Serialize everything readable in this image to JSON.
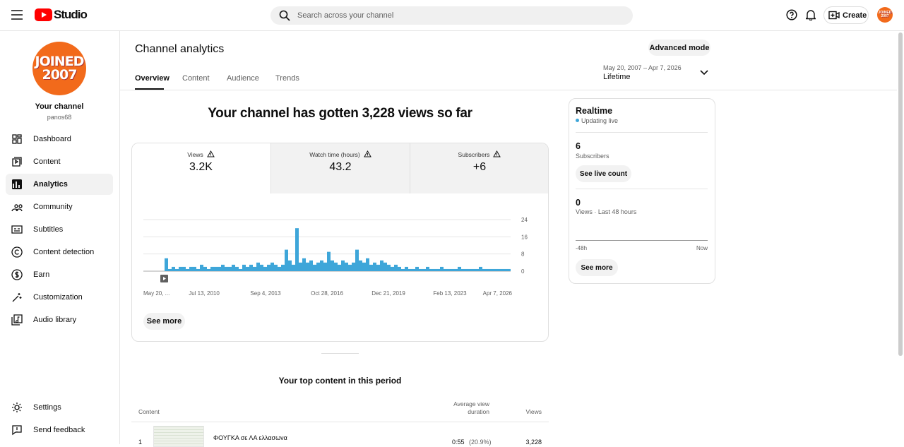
{
  "header": {
    "logo": "Studio",
    "search_placeholder": "Search across your channel",
    "create": "Create",
    "avatar": [
      "JOINED",
      "2007"
    ]
  },
  "sidebar": {
    "avatar": [
      "JOINED",
      "2007"
    ],
    "channel_name": "Your channel",
    "handle": "panos68",
    "nav": [
      "Dashboard",
      "Content",
      "Analytics",
      "Community",
      "Subtitles",
      "Content detection",
      "Earn",
      "Customization",
      "Audio library"
    ],
    "bottom": [
      "Settings",
      "Send feedback"
    ]
  },
  "page": {
    "title": "Channel analytics",
    "tabs": [
      "Overview",
      "Content",
      "Audience",
      "Trends"
    ],
    "advanced": "Advanced mode",
    "date_range": "May 20, 2007 – Apr 7, 2026",
    "period": "Lifetime"
  },
  "headline": "Your channel has gotten 3,228 views so far",
  "metrics": [
    {
      "label": "Views",
      "value": "3.2K"
    },
    {
      "label": "Watch time (hours)",
      "value": "43.2"
    },
    {
      "label": "Subscribers",
      "value": "+6"
    }
  ],
  "chart_data": {
    "type": "bar",
    "color": "#3ea6d9",
    "x_labels": [
      "May 20, ...",
      "Jul 13, 2010",
      "Sep 4, 2013",
      "Oct 28, 2016",
      "Dec 21, 2019",
      "Feb 13, 2023",
      "Apr 7, 2026"
    ],
    "ylim": [
      0,
      24
    ],
    "yticks": [
      0,
      8,
      16,
      24
    ],
    "grid": true,
    "values": [
      0,
      0,
      0,
      0,
      0,
      0,
      6,
      1,
      2,
      1,
      2,
      2,
      1,
      2,
      2,
      1,
      3,
      2,
      1,
      2,
      2,
      2,
      3,
      2,
      2,
      3,
      2,
      1,
      3,
      2,
      3,
      2,
      4,
      3,
      2,
      3,
      4,
      3,
      2,
      3,
      10,
      5,
      3,
      20,
      4,
      6,
      4,
      5,
      3,
      4,
      5,
      4,
      9,
      5,
      4,
      3,
      5,
      4,
      3,
      4,
      10,
      5,
      4,
      6,
      3,
      4,
      3,
      5,
      4,
      3,
      2,
      3,
      2,
      1,
      2,
      1,
      1,
      2,
      1,
      1,
      2,
      1,
      1,
      1,
      2,
      1,
      1,
      1,
      1,
      2,
      1,
      1,
      1,
      1,
      1,
      2,
      1,
      1,
      1,
      1,
      1,
      1,
      1,
      1
    ]
  },
  "see_more": "See more",
  "realtime": {
    "title": "Realtime",
    "status": "Updating live",
    "subscribers": 6,
    "subscribers_label": "Subscribers",
    "live_button": "See live count",
    "views": 0,
    "views_label": "Views · Last 48 hours",
    "axis_start": "-48h",
    "axis_end": "Now",
    "see_more": "See more"
  },
  "top_content": {
    "title": "Your top content in this period",
    "columns": [
      "Content",
      "Average view duration",
      "Views"
    ],
    "rows": [
      {
        "rank": "1",
        "title": "ΦΟΥΓΚΑ σε ΛΑ ελλασωνα",
        "duration": "0:55",
        "percent": "(20.9%)",
        "views": "3,228"
      }
    ]
  }
}
